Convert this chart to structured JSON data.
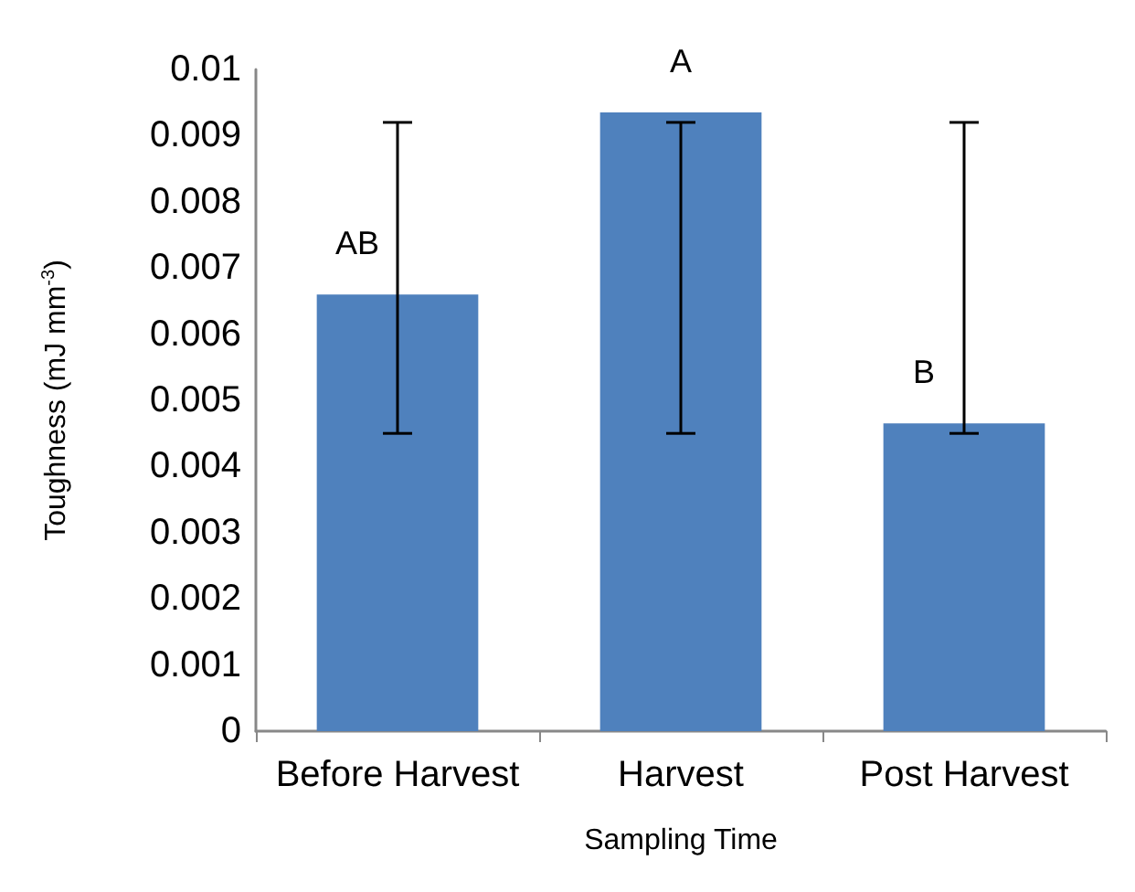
{
  "chart_data": {
    "type": "bar",
    "xlabel": "Sampling Time",
    "ylabel": "Toughness (mJ mm$^{-3}$)",
    "categories": [
      "Before Harvest",
      "Harvest",
      "Post Harvest"
    ],
    "values": [
      0.0066,
      0.00935,
      0.00465
    ],
    "color": "#4f81bd",
    "errors": [
      [
        0.0045,
        0.0092
      ],
      [
        0.0045,
        0.0092
      ],
      [
        0.0045,
        0.0092
      ]
    ],
    "ylim": [
      0,
      0.01
    ],
    "yticks": [
      0,
      0.001,
      0.002,
      0.003,
      0.004,
      0.005,
      0.006,
      0.007,
      0.008,
      0.009,
      0.01
    ],
    "grid": false,
    "annotations": [
      {
        "text": "AB",
        "x": "Before Harvest",
        "y": 0.0066
      },
      {
        "text": "A",
        "x": "Harvest",
        "y": 0.00935
      },
      {
        "text": "B",
        "x": "Post Harvest",
        "y": 0.00465
      }
    ]
  }
}
